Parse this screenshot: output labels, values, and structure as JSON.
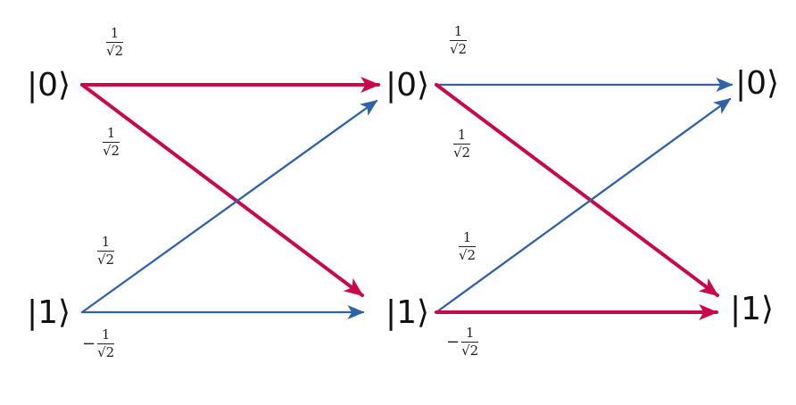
{
  "colors": {
    "red": "#c8084a",
    "blue": "#2f62a6"
  },
  "states": {
    "ket0": "|0⟩",
    "ket1": "|1⟩"
  },
  "stages": [
    {
      "labels": {
        "top": {
          "sign": "",
          "num": "1",
          "den": "√2"
        },
        "upperMid": {
          "sign": "",
          "num": "1",
          "den": "√2"
        },
        "lowerMid": {
          "sign": "",
          "num": "1",
          "den": "√2"
        },
        "bottom": {
          "sign": "−",
          "num": "1",
          "den": "√2"
        }
      },
      "edges": [
        {
          "from": "0",
          "to": "0",
          "color": "red",
          "emphasis": "bold"
        },
        {
          "from": "0",
          "to": "1",
          "color": "red",
          "emphasis": "bold"
        },
        {
          "from": "1",
          "to": "0",
          "color": "blue",
          "emphasis": "thin"
        },
        {
          "from": "1",
          "to": "1",
          "color": "blue",
          "emphasis": "thin"
        }
      ]
    },
    {
      "labels": {
        "top": {
          "sign": "",
          "num": "1",
          "den": "√2"
        },
        "upperMid": {
          "sign": "",
          "num": "1",
          "den": "√2"
        },
        "lowerMid": {
          "sign": "",
          "num": "1",
          "den": "√2"
        },
        "bottom": {
          "sign": "−",
          "num": "1",
          "den": "√2"
        }
      },
      "edges": [
        {
          "from": "0",
          "to": "0",
          "color": "blue",
          "emphasis": "thin"
        },
        {
          "from": "0",
          "to": "1",
          "color": "red",
          "emphasis": "bold"
        },
        {
          "from": "1",
          "to": "0",
          "color": "blue",
          "emphasis": "thin"
        },
        {
          "from": "1",
          "to": "1",
          "color": "red",
          "emphasis": "bold"
        }
      ]
    }
  ]
}
